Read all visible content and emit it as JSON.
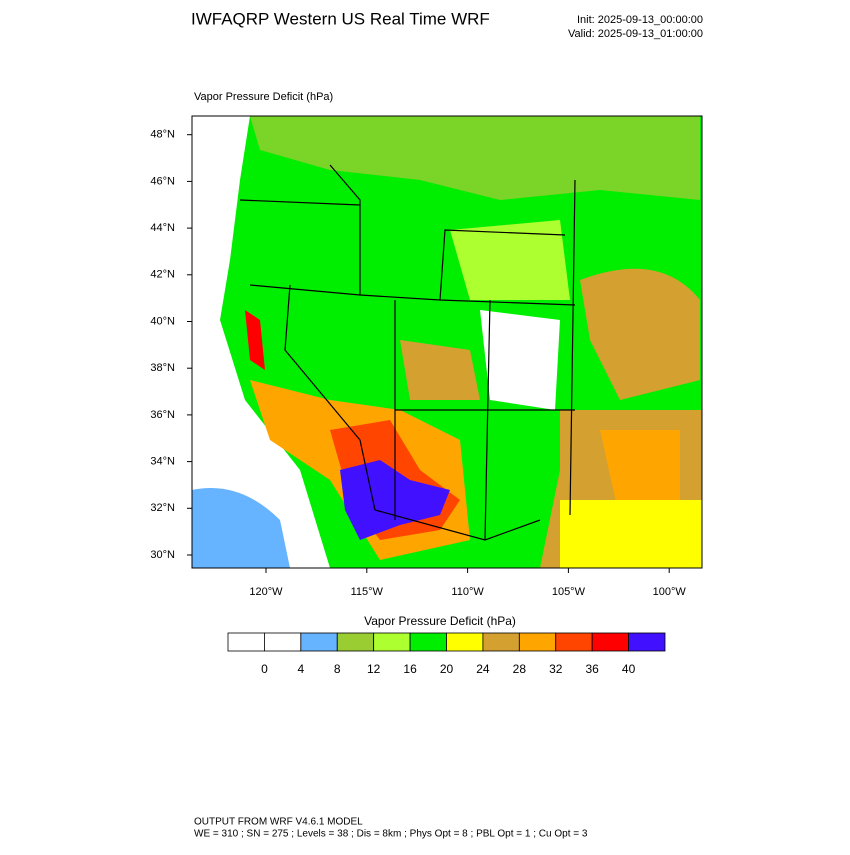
{
  "header": {
    "title": "IWFAQRP Western US Real Time WRF",
    "init": "Init: 2025-09-13_00:00:00",
    "valid": "Valid: 2025-09-13_01:00:00"
  },
  "map": {
    "subtitle": "Vapor Pressure Deficit   (hPa)",
    "lat_labels": [
      "30°N",
      "32°N",
      "34°N",
      "36°N",
      "38°N",
      "40°N",
      "42°N",
      "44°N",
      "46°N",
      "48°N"
    ],
    "lon_labels": [
      "120°W",
      "115°W",
      "110°W",
      "105°W",
      "100°W"
    ]
  },
  "colorbar": {
    "title": "Vapor Pressure Deficit  (hPa)",
    "colors": [
      "#ffffff",
      "#ffffff",
      "#66b3ff",
      "#9acd32",
      "#adff2f",
      "#00ee00",
      "#ffff00",
      "#d4a030",
      "#ffa500",
      "#ff4500",
      "#ff0000",
      "#4010ff"
    ],
    "labels": [
      "0",
      "4",
      "8",
      "12",
      "16",
      "20",
      "24",
      "28",
      "32",
      "36",
      "40"
    ]
  },
  "footer": {
    "line1": "OUTPUT FROM WRF V4.6.1 MODEL",
    "line2": "WE = 310 ; SN = 275 ; Levels = 38 ; Dis = 8km ; Phys Opt = 8 ; PBL Opt = 1 ; Cu Opt = 3"
  }
}
